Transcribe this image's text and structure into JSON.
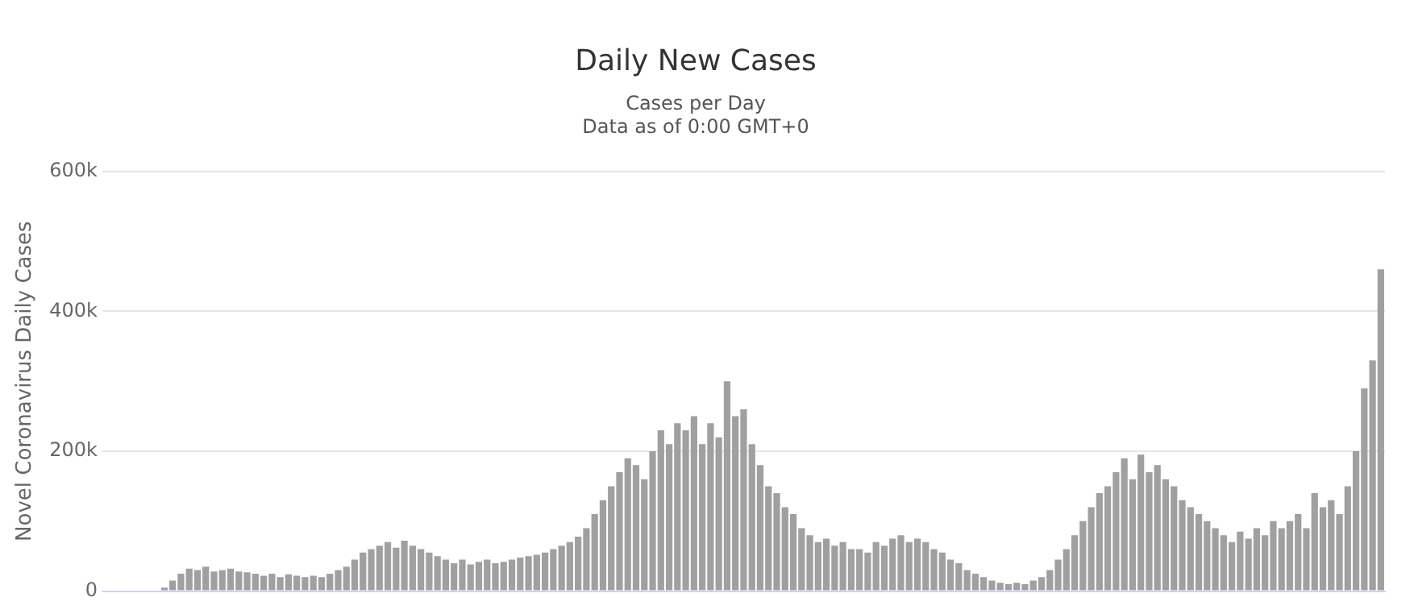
{
  "chart_data": {
    "type": "bar",
    "title": "Daily New Cases",
    "subtitle": "Cases per Day\nData as of 0:00 GMT+0",
    "ylabel": "Novel Coronavirus Daily Cases",
    "categories": [
      null,
      null,
      null,
      null,
      null,
      null,
      null,
      null,
      null,
      null,
      null,
      null,
      null,
      null,
      null,
      null,
      null,
      null,
      null,
      null,
      null,
      null,
      null,
      null,
      null,
      null,
      null,
      null,
      null,
      null,
      null,
      null,
      null,
      null,
      null,
      null,
      null,
      null,
      null,
      null,
      null,
      null,
      null,
      null,
      null,
      null,
      null,
      null,
      null,
      null,
      null,
      null,
      null,
      null,
      null,
      null,
      null,
      null,
      null,
      null,
      null,
      null,
      null,
      null,
      null,
      null,
      null,
      null,
      null,
      null,
      null,
      null,
      null,
      null,
      null,
      null,
      null,
      null,
      null,
      null,
      null,
      null,
      null,
      null,
      null,
      null,
      null,
      null,
      null,
      null,
      null,
      null,
      null,
      null,
      null,
      null,
      null,
      null,
      null,
      null,
      null,
      null,
      null,
      null,
      null,
      null,
      null,
      null,
      null,
      null,
      null,
      null,
      null,
      null,
      null,
      null,
      null,
      null,
      null,
      null,
      null,
      null,
      null,
      null,
      null,
      null,
      null,
      null,
      null,
      null,
      null,
      null,
      null,
      null,
      null,
      null,
      null,
      null,
      null,
      null,
      null,
      null,
      null,
      null,
      null,
      null,
      null,
      null,
      null,
      null,
      null,
      null,
      null,
      null,
      null
    ],
    "values": [
      0,
      0,
      0,
      0,
      0,
      0,
      0,
      5000,
      15000,
      25000,
      32000,
      30000,
      35000,
      28000,
      30000,
      32000,
      28000,
      27000,
      25000,
      22000,
      25000,
      20000,
      24000,
      22000,
      20000,
      22000,
      20000,
      25000,
      30000,
      35000,
      45000,
      55000,
      60000,
      65000,
      70000,
      62000,
      72000,
      65000,
      60000,
      55000,
      50000,
      45000,
      40000,
      45000,
      38000,
      42000,
      45000,
      40000,
      42000,
      45000,
      48000,
      50000,
      52000,
      55000,
      60000,
      65000,
      70000,
      78000,
      90000,
      110000,
      130000,
      150000,
      170000,
      190000,
      180000,
      160000,
      200000,
      230000,
      210000,
      240000,
      230000,
      250000,
      210000,
      240000,
      220000,
      300000,
      250000,
      260000,
      210000,
      180000,
      150000,
      140000,
      120000,
      110000,
      90000,
      80000,
      70000,
      75000,
      65000,
      70000,
      60000,
      60000,
      55000,
      70000,
      65000,
      75000,
      80000,
      70000,
      75000,
      70000,
      60000,
      55000,
      45000,
      40000,
      30000,
      25000,
      20000,
      15000,
      12000,
      10000,
      12000,
      10000,
      15000,
      20000,
      30000,
      45000,
      60000,
      80000,
      100000,
      120000,
      140000,
      150000,
      170000,
      190000,
      160000,
      195000,
      170000,
      180000,
      160000,
      150000,
      130000,
      120000,
      110000,
      100000,
      90000,
      80000,
      70000,
      85000,
      75000,
      90000,
      80000,
      100000,
      90000,
      100000,
      110000,
      90000,
      140000,
      120000,
      130000,
      110000,
      150000,
      200000,
      290000,
      330000,
      460000
    ],
    "color": "#a0a0a0",
    "ylim": [
      0,
      600000
    ],
    "yticks": [
      0,
      {
        "value": 200000,
        "label": "200k"
      },
      {
        "value": 400000,
        "label": "400k"
      },
      {
        "value": 600000,
        "label": "600k"
      }
    ],
    "grid": "y",
    "tick_labels": "y",
    "legend": false
  }
}
